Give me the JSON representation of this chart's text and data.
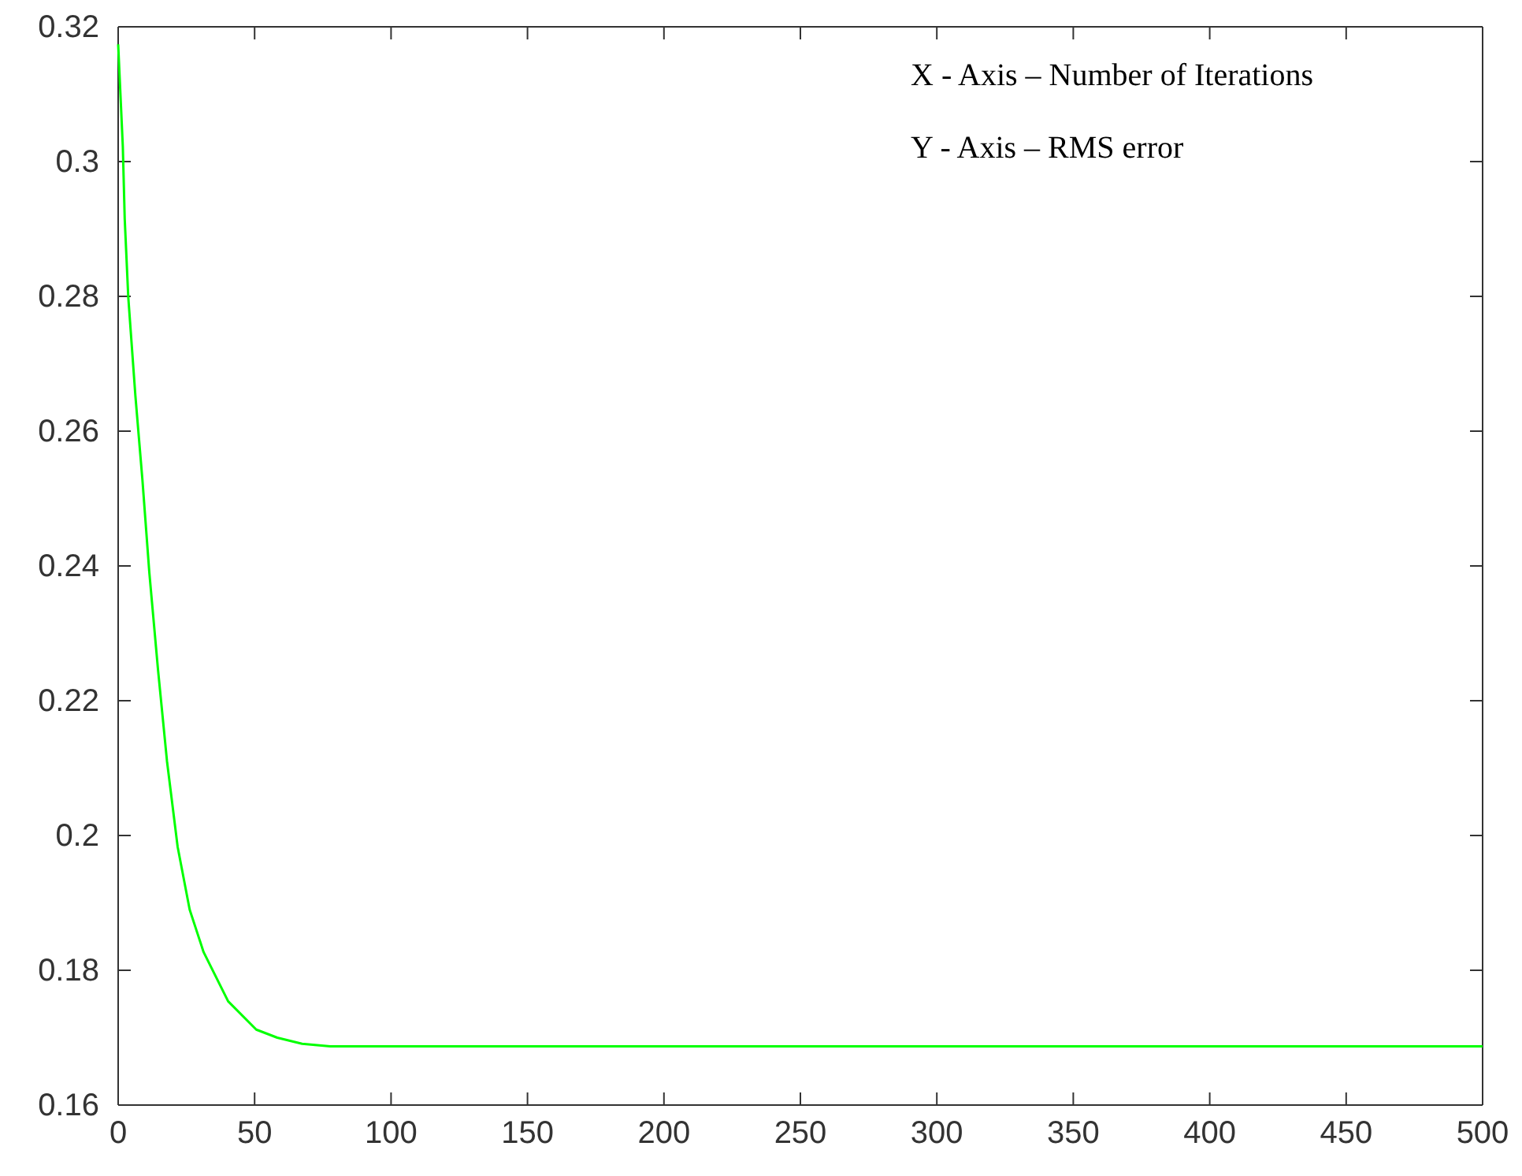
{
  "chart_data": {
    "type": "line",
    "x": [
      0,
      1.7,
      2.4,
      3.7,
      6.3,
      8.9,
      11.4,
      14.6,
      17.9,
      21.8,
      26.2,
      31.3,
      40.3,
      50.6,
      58.3,
      67.4,
      77.7,
      150,
      300,
      500
    ],
    "series": [
      {
        "color": "#00ff00",
        "values": [
          0.3174,
          0.3023,
          0.2915,
          0.2799,
          0.2653,
          0.2527,
          0.2391,
          0.2246,
          0.211,
          0.1983,
          0.189,
          0.1827,
          0.1754,
          0.1712,
          0.17,
          0.1691,
          0.1687,
          0.1687,
          0.1687,
          0.1687
        ]
      }
    ],
    "xlim": [
      0,
      500
    ],
    "xticks": [
      0,
      50,
      100,
      150,
      200,
      250,
      300,
      350,
      400,
      450,
      500
    ],
    "ylim": [
      0.16,
      0.32
    ],
    "yticks": [
      0.16,
      0.18,
      0.2,
      0.22,
      0.24,
      0.26,
      0.28,
      0.3,
      0.32
    ],
    "grid": false,
    "marker": "none",
    "line_style": "solid",
    "annotations": [
      "X - Axis – Number of Iterations",
      "Y - Axis – RMS error"
    ]
  }
}
